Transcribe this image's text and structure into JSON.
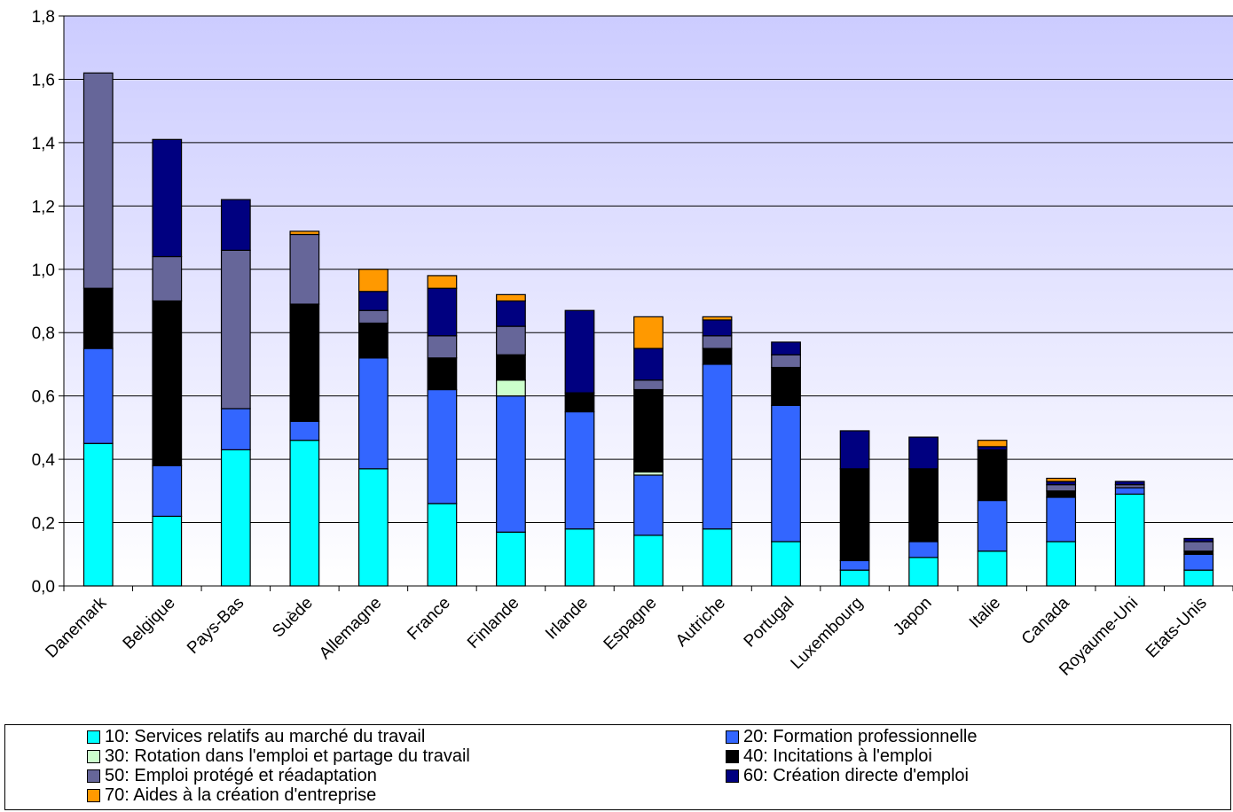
{
  "chart_data": {
    "type": "bar",
    "stacked": true,
    "title": "",
    "xlabel": "",
    "ylabel": "",
    "ylim": [
      0,
      1.8
    ],
    "yticks": [
      "0,0",
      "0,2",
      "0,4",
      "0,6",
      "0,8",
      "1,0",
      "1,2",
      "1,4",
      "1,6",
      "1,8"
    ],
    "grid": true,
    "legend_position": "bottom",
    "categories": [
      "Danemark",
      "Belgique",
      "Pays-Bas",
      "Suède",
      "Allemagne",
      "France",
      "Finlande",
      "Irlande",
      "Espagne",
      "Autriche",
      "Portugal",
      "Luxembourg",
      "Japon",
      "Italie",
      "Canada",
      "Royaume-Uni",
      "Etats-Unis"
    ],
    "series": [
      {
        "name": "10: Services relatifs au marché du travail",
        "color": "#00ffff",
        "values": [
          0.45,
          0.22,
          0.43,
          0.46,
          0.37,
          0.26,
          0.17,
          0.18,
          0.16,
          0.18,
          0.14,
          0.05,
          0.09,
          0.11,
          0.14,
          0.29,
          0.05
        ]
      },
      {
        "name": "20: Formation professionnelle",
        "color": "#3366ff",
        "values": [
          0.3,
          0.16,
          0.13,
          0.06,
          0.35,
          0.36,
          0.43,
          0.37,
          0.19,
          0.52,
          0.43,
          0.03,
          0.05,
          0.16,
          0.14,
          0.02,
          0.05
        ]
      },
      {
        "name": "30: Rotation dans l'emploi et partage du travail",
        "color": "#ccffcc",
        "values": [
          0,
          0,
          0,
          0,
          0,
          0,
          0.05,
          0,
          0.01,
          0,
          0,
          0,
          0,
          0,
          0,
          0,
          0
        ]
      },
      {
        "name": "40: Incitations à l'emploi",
        "color": "#000000",
        "values": [
          0.19,
          0.52,
          0,
          0.37,
          0.11,
          0.1,
          0.08,
          0.06,
          0.26,
          0.05,
          0.12,
          0.29,
          0.23,
          0.16,
          0.02,
          0,
          0.01
        ]
      },
      {
        "name": "50: Emploi protégé et réadaptation",
        "color": "#666699",
        "values": [
          0.68,
          0.14,
          0.5,
          0.22,
          0.04,
          0.07,
          0.09,
          0,
          0.03,
          0.04,
          0.04,
          0,
          0,
          0,
          0.02,
          0.01,
          0.03
        ]
      },
      {
        "name": "60: Création directe d'emploi",
        "color": "#000080",
        "values": [
          0,
          0.37,
          0.16,
          0,
          0.06,
          0.15,
          0.08,
          0.26,
          0.1,
          0.05,
          0.04,
          0.12,
          0.1,
          0.01,
          0.01,
          0.01,
          0.01
        ]
      },
      {
        "name": "70: Aides à la création d'entreprise",
        "color": "#ff9900",
        "values": [
          0,
          0,
          0,
          0.01,
          0.07,
          0.04,
          0.02,
          0,
          0.1,
          0.01,
          0,
          0,
          0,
          0.02,
          0.01,
          0,
          0
        ]
      }
    ]
  }
}
